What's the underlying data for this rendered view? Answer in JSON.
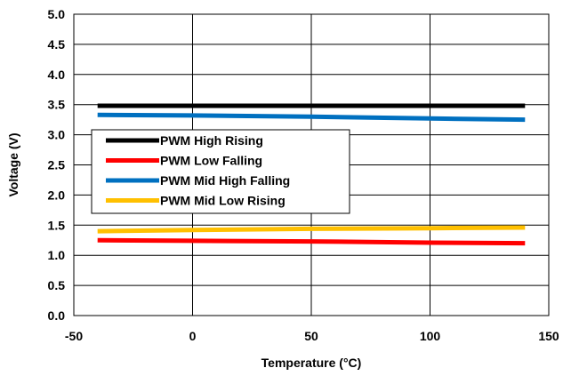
{
  "chart_data": {
    "type": "line",
    "xlabel": "Temperature (°C)",
    "ylabel": "Voltage (V)",
    "xlim": [
      -50,
      150
    ],
    "ylim": [
      0,
      5
    ],
    "x_ticks": [
      "-50",
      "0",
      "50",
      "100",
      "150"
    ],
    "y_ticks": [
      "0.0",
      "0.5",
      "1.0",
      "1.5",
      "2.0",
      "2.5",
      "3.0",
      "3.5",
      "4.0",
      "4.5",
      "5.0"
    ],
    "grid": true,
    "legend_position": "left-middle",
    "series": [
      {
        "name": "PWM High Rising",
        "color": "#000000",
        "x": [
          -40,
          0,
          50,
          100,
          140
        ],
        "values": [
          3.48,
          3.48,
          3.48,
          3.48,
          3.48
        ]
      },
      {
        "name": "PWM Low Falling",
        "color": "#ff0000",
        "x": [
          -40,
          0,
          50,
          100,
          140
        ],
        "values": [
          1.25,
          1.24,
          1.23,
          1.21,
          1.2
        ]
      },
      {
        "name": "PWM Mid High Falling",
        "color": "#0070c0",
        "x": [
          -40,
          0,
          50,
          100,
          140
        ],
        "values": [
          3.33,
          3.32,
          3.3,
          3.27,
          3.25
        ]
      },
      {
        "name": "PWM Mid Low Rising",
        "color": "#ffc000",
        "x": [
          -40,
          0,
          50,
          100,
          140
        ],
        "values": [
          1.4,
          1.42,
          1.44,
          1.45,
          1.46
        ]
      }
    ]
  }
}
